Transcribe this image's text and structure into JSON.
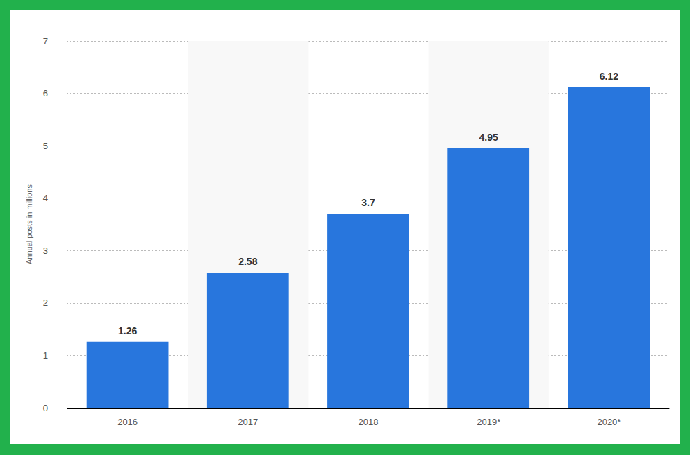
{
  "chart_data": {
    "type": "bar",
    "y_label": "Annual posts in millions",
    "categories": [
      "2016",
      "2017",
      "2018",
      "2019*",
      "2020*"
    ],
    "values": [
      1.26,
      2.58,
      3.7,
      4.95,
      6.12
    ],
    "color": "#2876dd",
    "ylim": [
      0,
      7
    ],
    "yticks": [
      0,
      1,
      2,
      3,
      4,
      5,
      6,
      7
    ],
    "grid": true,
    "data_labels": true
  }
}
